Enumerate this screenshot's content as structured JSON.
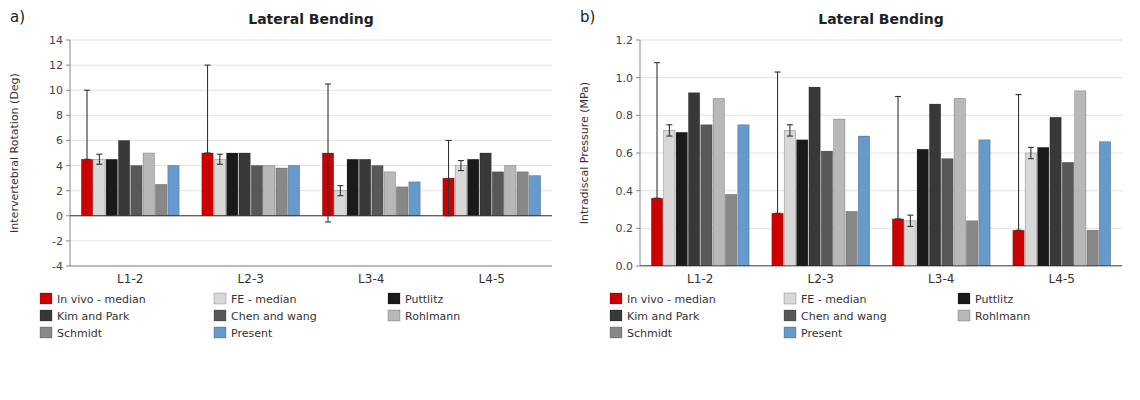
{
  "chart_data": [
    {
      "type": "bar",
      "title": "Lateral Bending",
      "annotations": [
        "a)"
      ],
      "categories": [
        "L1-2",
        "L2-3",
        "L3-4",
        "L4-5"
      ],
      "ylabel": "Intervertebral Rotation (Deg)",
      "ylim": [
        -4,
        14
      ],
      "yticks": [
        -4,
        -2,
        0,
        2,
        4,
        6,
        8,
        10,
        12,
        14
      ],
      "grid": true,
      "legend": "bottom",
      "series": [
        {
          "name": "In vivo - median",
          "color": "#cc0000",
          "values": [
            4.5,
            5.0,
            5.0,
            3.0
          ],
          "err_low": [
            0.0,
            0.0,
            5.5,
            3.0
          ],
          "err_high": [
            5.5,
            7.0,
            5.5,
            3.0
          ]
        },
        {
          "name": "FE - median",
          "color": "#d8d8d8",
          "values": [
            4.5,
            4.5,
            2.0,
            4.0
          ],
          "err_low": [
            0.4,
            0.4,
            0.4,
            0.4
          ],
          "err_high": [
            0.4,
            0.4,
            0.4,
            0.4
          ]
        },
        {
          "name": "Puttlitz",
          "color": "#1a1a1a",
          "values": [
            4.5,
            5.0,
            4.5,
            4.5
          ]
        },
        {
          "name": "Kim and Park",
          "color": "#383838",
          "values": [
            6.0,
            5.0,
            4.5,
            5.0
          ]
        },
        {
          "name": "Chen and wang",
          "color": "#585858",
          "values": [
            4.0,
            4.0,
            4.0,
            3.5
          ]
        },
        {
          "name": "Rohlmann",
          "color": "#b8b8b8",
          "values": [
            5.0,
            4.0,
            3.5,
            4.0
          ]
        },
        {
          "name": "Schmidt",
          "color": "#888888",
          "values": [
            2.5,
            3.8,
            2.3,
            3.5
          ]
        },
        {
          "name": "Present",
          "color": "#6699cc",
          "values": [
            4.0,
            4.0,
            2.7,
            3.2
          ]
        }
      ]
    },
    {
      "type": "bar",
      "title": "Lateral Bending",
      "annotations": [
        "b)"
      ],
      "categories": [
        "L1-2",
        "L2-3",
        "L3-4",
        "L4-5"
      ],
      "ylabel": "Intradiscal Pressure (MPa)",
      "ylim": [
        0.0,
        1.2
      ],
      "yticks": [
        {
          "value": 0.0,
          "label": "0.0"
        },
        0.2,
        0.4,
        0.6,
        0.8,
        {
          "value": 1.0,
          "label": "1.0"
        },
        1.2
      ],
      "grid": true,
      "legend": "bottom",
      "series": [
        {
          "name": "In vivo - median",
          "color": "#cc0000",
          "values": [
            0.36,
            0.28,
            0.25,
            0.19
          ],
          "err_low": [
            0.0,
            0.0,
            0.0,
            0.0
          ],
          "err_high": [
            0.72,
            0.75,
            0.65,
            0.72
          ]
        },
        {
          "name": "FE - median",
          "color": "#d8d8d8",
          "values": [
            0.72,
            0.72,
            0.24,
            0.6
          ],
          "err_low": [
            0.03,
            0.03,
            0.03,
            0.03
          ],
          "err_high": [
            0.03,
            0.03,
            0.03,
            0.03
          ]
        },
        {
          "name": "Puttlitz",
          "color": "#1a1a1a",
          "values": [
            0.71,
            0.67,
            0.62,
            0.63
          ]
        },
        {
          "name": "Kim and Park",
          "color": "#383838",
          "values": [
            0.92,
            0.95,
            0.86,
            0.79
          ]
        },
        {
          "name": "Chen and wang",
          "color": "#585858",
          "values": [
            0.75,
            0.61,
            0.57,
            0.55
          ]
        },
        {
          "name": "Rohlmann",
          "color": "#b8b8b8",
          "values": [
            0.89,
            0.78,
            0.89,
            0.93
          ]
        },
        {
          "name": "Schmidt",
          "color": "#888888",
          "values": [
            0.38,
            0.29,
            0.24,
            0.19
          ]
        },
        {
          "name": "Present",
          "color": "#6699cc",
          "values": [
            0.75,
            0.69,
            0.67,
            0.66
          ]
        }
      ]
    }
  ]
}
